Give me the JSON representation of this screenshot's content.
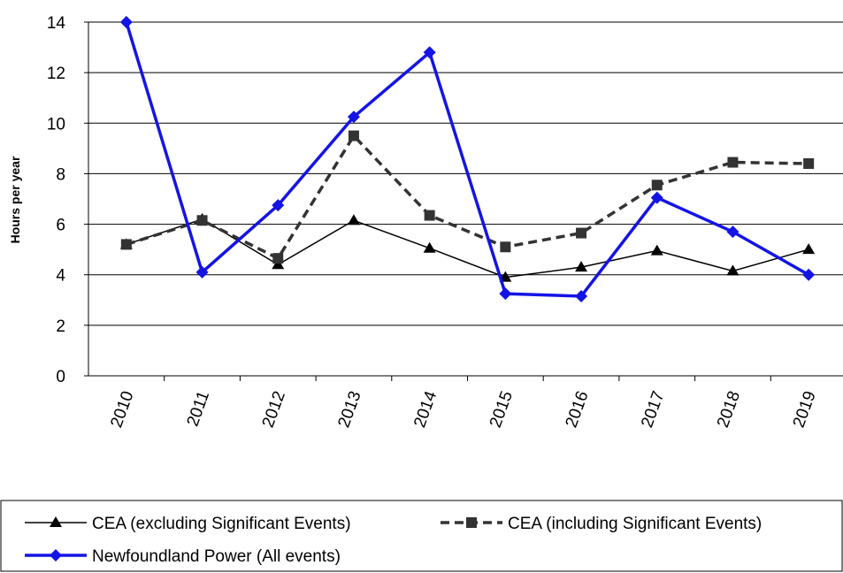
{
  "chart_data": {
    "type": "line",
    "y_label": "Hours per year",
    "categories": [
      "2010",
      "2011",
      "2012",
      "2013",
      "2014",
      "2015",
      "2016",
      "2017",
      "2018",
      "2019"
    ],
    "series": [
      {
        "name": "CEA (excluding Significant Events)",
        "color": "#000000",
        "marker": "triangle",
        "dashed": false,
        "values": [
          5.2,
          6.2,
          4.4,
          6.15,
          5.05,
          3.9,
          4.3,
          4.95,
          4.15,
          5.0
        ]
      },
      {
        "name": "CEA (including Significant Events)",
        "color": "#333333",
        "marker": "square",
        "dashed": true,
        "values": [
          5.2,
          6.15,
          4.65,
          9.5,
          6.35,
          5.1,
          5.65,
          7.55,
          8.45,
          8.4
        ]
      },
      {
        "name": "Newfoundland Power (All events)",
        "color": "#1414e6",
        "marker": "diamond",
        "dashed": false,
        "values": [
          14.0,
          4.1,
          6.75,
          10.25,
          12.8,
          3.25,
          3.15,
          7.05,
          5.7,
          4.0
        ]
      }
    ],
    "ylim": [
      0,
      14
    ],
    "yticks": [
      0,
      2,
      4,
      6,
      8,
      10,
      12,
      14
    ],
    "grid": true,
    "legend": "bottom"
  }
}
